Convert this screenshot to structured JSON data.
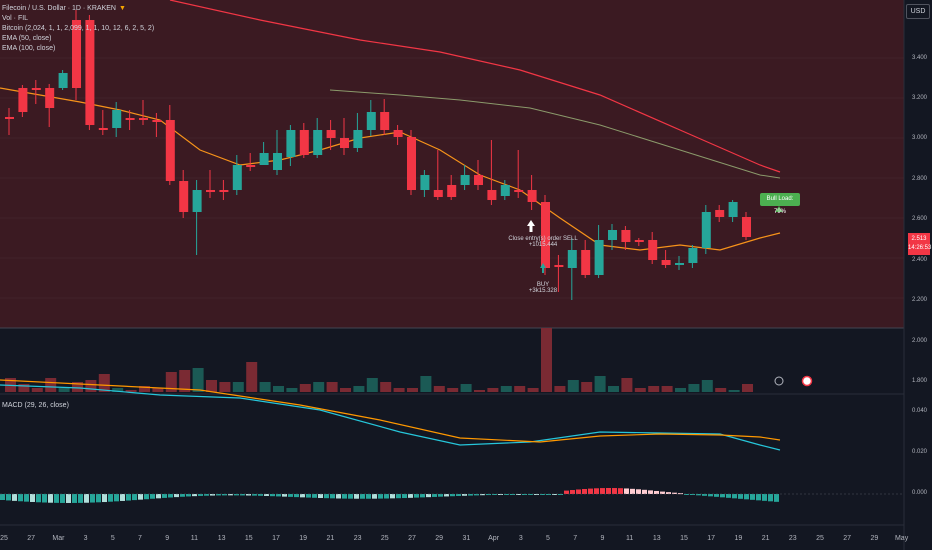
{
  "header": {
    "symbol_line": "Filecoin / U.S. Dollar · 1D · KRAKEN",
    "indicators": [
      "Vol · FIL",
      "Bitcoin (2,024, 1, 1, 2,099, 1, 1, 10, 12, 6, 2, 5, 2)",
      "EMA (50, close)",
      "EMA (100, close)"
    ],
    "macd_label": "MACD (29, 26, close)",
    "currency": "USD"
  },
  "price_axis": [
    "3.400",
    "3.200",
    "3.000",
    "2.800",
    "2.600",
    "2.400",
    "2.200",
    "2.000",
    "1.800"
  ],
  "macd_axis": [
    "0.040",
    "0.020",
    "0.000"
  ],
  "last_price": {
    "value": "2.513",
    "sub": "14:26:53"
  },
  "date_axis": [
    "25",
    "27",
    "Mar",
    "3",
    "5",
    "7",
    "9",
    "11",
    "13",
    "15",
    "17",
    "19",
    "21",
    "23",
    "25",
    "27",
    "29",
    "31",
    "Apr",
    "3",
    "5",
    "7",
    "9",
    "11",
    "13",
    "15",
    "17",
    "19",
    "21",
    "23",
    "25",
    "27",
    "29",
    "May"
  ],
  "annotations": {
    "close_entry": "Close entry(s) order SELL",
    "close_entry_value": "+1015.444",
    "buy": "BUY",
    "buy_value": "+3k15.328",
    "bull_label": "Bull Load: 79%"
  },
  "colors": {
    "up": "#26a69a",
    "down": "#f23645",
    "ema50": "#f7931a",
    "ema100": "#f23645",
    "macd": "#26c6da",
    "signal": "#ff9800"
  }
}
